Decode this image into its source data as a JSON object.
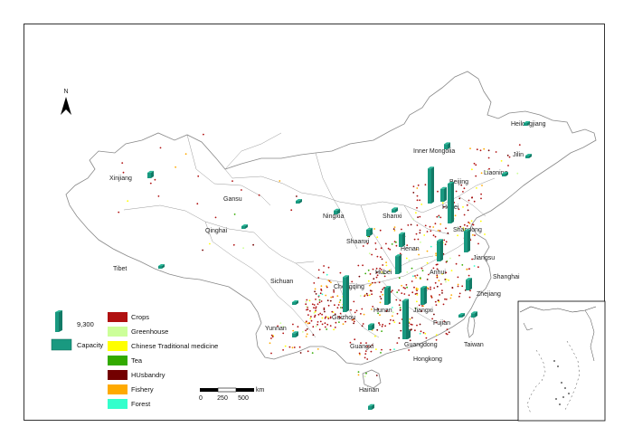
{
  "north_label": "N",
  "regions": [
    {
      "id": "heilongjiang",
      "label": "Heilongjiang"
    },
    {
      "id": "jilin",
      "label": "Jilin"
    },
    {
      "id": "liaoning",
      "label": "Liaoning"
    },
    {
      "id": "inner-mongolia",
      "label": "Inner Mongolia"
    },
    {
      "id": "xinjiang",
      "label": "Xinjiang"
    },
    {
      "id": "gansu",
      "label": "Gansu"
    },
    {
      "id": "beijing",
      "label": "Beijing"
    },
    {
      "id": "hebei",
      "label": "Hebei"
    },
    {
      "id": "ningxia",
      "label": "Ningxia"
    },
    {
      "id": "shanxi",
      "label": "Shanxi"
    },
    {
      "id": "shandong",
      "label": "Shandong"
    },
    {
      "id": "qinghai",
      "label": "Qinghai"
    },
    {
      "id": "shaanxi",
      "label": "Shaanxi"
    },
    {
      "id": "henan",
      "label": "Henan"
    },
    {
      "id": "tibet",
      "label": "Tibet"
    },
    {
      "id": "jiangsu",
      "label": "Jiangsu"
    },
    {
      "id": "anhui",
      "label": "Anhui"
    },
    {
      "id": "hubei",
      "label": "Hubei"
    },
    {
      "id": "shanghai",
      "label": "Shanghai"
    },
    {
      "id": "sichuan",
      "label": "Sichuan"
    },
    {
      "id": "chongqing",
      "label": "Chongqing"
    },
    {
      "id": "zhejiang",
      "label": "Zhejiang"
    },
    {
      "id": "hunan",
      "label": "Hunan"
    },
    {
      "id": "jiangxi",
      "label": "Jiangxi"
    },
    {
      "id": "guizhou",
      "label": "Guizhou"
    },
    {
      "id": "fujian",
      "label": "Fujian"
    },
    {
      "id": "yunnan",
      "label": "Yunnan"
    },
    {
      "id": "guangxi",
      "label": "Guangxi"
    },
    {
      "id": "guangdong",
      "label": "Guangdong"
    },
    {
      "id": "taiwan",
      "label": "Taiwan"
    },
    {
      "id": "hongkong",
      "label": "Hongkong"
    },
    {
      "id": "hainan",
      "label": "Hainan"
    }
  ],
  "capacity_bars": [
    {
      "region": "heilongjiang",
      "value": 300
    },
    {
      "region": "jilin",
      "value": 300
    },
    {
      "region": "liaoning",
      "value": 400
    },
    {
      "region": "inner-mongolia",
      "value": 1200
    },
    {
      "region": "xinjiang",
      "value": 1300
    },
    {
      "region": "beijing",
      "value": 8200
    },
    {
      "region": "hebei",
      "value": 9300
    },
    {
      "region": "tianjin-area",
      "value": 3000
    },
    {
      "region": "gansu",
      "value": 300
    },
    {
      "region": "ningxia",
      "value": 900
    },
    {
      "region": "shanxi",
      "value": 800
    },
    {
      "region": "shaanxi",
      "value": 1500
    },
    {
      "region": "qinghai",
      "value": 300
    },
    {
      "region": "shandong",
      "value": 5000
    },
    {
      "region": "henan",
      "value": 3000
    },
    {
      "region": "jiangsu",
      "value": 4800
    },
    {
      "region": "anhui",
      "value": 4200
    },
    {
      "region": "hubei",
      "value": 4000
    },
    {
      "region": "tibet",
      "value": 300
    },
    {
      "region": "sichuan",
      "value": 300
    },
    {
      "region": "chongqing",
      "value": 8200
    },
    {
      "region": "hunan",
      "value": 4000
    },
    {
      "region": "jiangxi",
      "value": 1800
    },
    {
      "region": "zhejiang",
      "value": 2500
    },
    {
      "region": "fujian",
      "value": 1000
    },
    {
      "region": "yunnan",
      "value": 1000
    },
    {
      "region": "guangxi",
      "value": 1200
    },
    {
      "region": "guangdong",
      "value": 9000
    },
    {
      "region": "hainan",
      "value": 900
    },
    {
      "region": "taiwan",
      "value": 300
    }
  ],
  "legend": {
    "bar_value_label": "9,300",
    "capacity_label": "Capacity",
    "categories": [
      {
        "label": "Crops",
        "color": "#b01010"
      },
      {
        "label": "Greenhouse",
        "color": "#ccff99"
      },
      {
        "label": "Chinese Traditional medicine",
        "color": "#ffff00"
      },
      {
        "label": "Tea",
        "color": "#33aa00"
      },
      {
        "label": "HUsbandry",
        "color": "#730000"
      },
      {
        "label": "Fishery",
        "color": "#ffaa00"
      },
      {
        "label": "Forest",
        "color": "#33ffcc"
      }
    ]
  },
  "scale_bar": {
    "ticks": [
      "0",
      "250",
      "500"
    ],
    "unit": "km"
  },
  "colors": {
    "capacity_bar": "#199980",
    "outline": "#888888"
  }
}
